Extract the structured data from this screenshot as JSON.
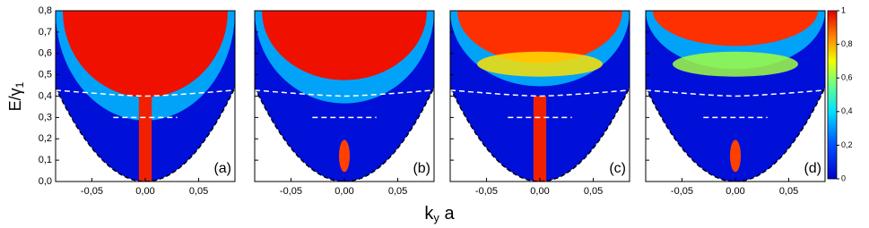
{
  "chart_data": {
    "type": "heatmap",
    "panels": [
      "(a)",
      "(b)",
      "(c)",
      "(d)"
    ],
    "xlabel": [
      "k",
      "y",
      " a"
    ],
    "ylabel": [
      "E/γ",
      "1"
    ],
    "xlim": [
      -0.084,
      0.084
    ],
    "ylim": [
      0,
      0.8
    ],
    "xticks": [
      {
        "value": -0.05,
        "label": "-0,05"
      },
      {
        "value": 0,
        "label": "0,00"
      },
      {
        "value": 0.05,
        "label": "0,05"
      }
    ],
    "yticks": [
      {
        "value": 0,
        "label": "0,0"
      },
      {
        "value": 0.1,
        "label": "0,1"
      },
      {
        "value": 0.2,
        "label": "0,2"
      },
      {
        "value": 0.3,
        "label": "0,3"
      },
      {
        "value": 0.4,
        "label": "0,4"
      },
      {
        "value": 0.5,
        "label": "0,5"
      },
      {
        "value": 0.6,
        "label": "0,6"
      },
      {
        "value": 0.7,
        "label": "0,7"
      },
      {
        "value": 0.8,
        "label": "0,8"
      }
    ],
    "colorbar_lim": [
      0,
      1
    ],
    "colorbar_ticks": [
      0,
      {
        "value": 0.2,
        "label": "0,2"
      },
      {
        "value": 0.4,
        "label": "0,4"
      },
      {
        "value": 0.6,
        "label": "0,6"
      },
      {
        "value": 0.8,
        "label": "0,8"
      },
      1
    ]
  }
}
